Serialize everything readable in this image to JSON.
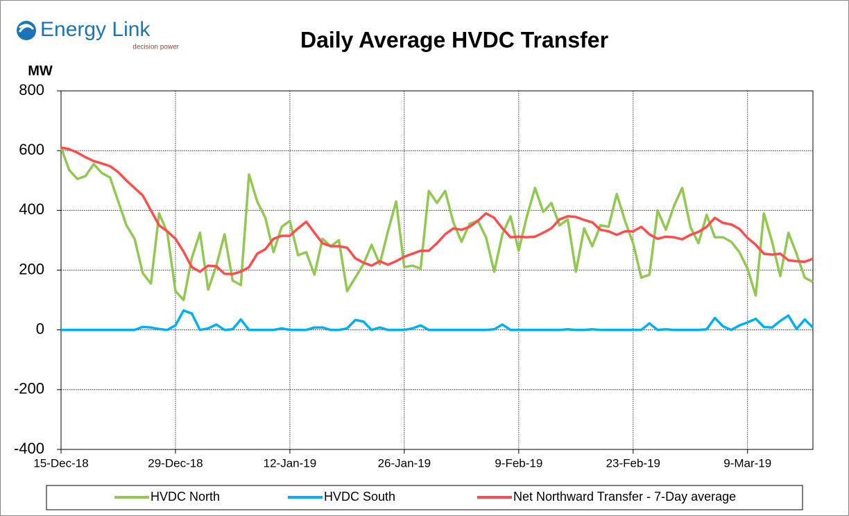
{
  "logo": {
    "name": "Energy Link",
    "tagline": "decision power"
  },
  "chart_data": {
    "type": "line",
    "title": "Daily Average HVDC Transfer",
    "y_label": "MW",
    "x": [
      "2018-12-15",
      "2018-12-16",
      "2018-12-17",
      "2018-12-18",
      "2018-12-19",
      "2018-12-20",
      "2018-12-21",
      "2018-12-22",
      "2018-12-23",
      "2018-12-24",
      "2018-12-25",
      "2018-12-26",
      "2018-12-27",
      "2018-12-28",
      "2018-12-29",
      "2018-12-30",
      "2018-12-31",
      "2019-01-01",
      "2019-01-02",
      "2019-01-03",
      "2019-01-04",
      "2019-01-05",
      "2019-01-06",
      "2019-01-07",
      "2019-01-08",
      "2019-01-09",
      "2019-01-10",
      "2019-01-11",
      "2019-01-12",
      "2019-01-13",
      "2019-01-14",
      "2019-01-15",
      "2019-01-16",
      "2019-01-17",
      "2019-01-18",
      "2019-01-19",
      "2019-01-20",
      "2019-01-21",
      "2019-01-22",
      "2019-01-23",
      "2019-01-24",
      "2019-01-25",
      "2019-01-26",
      "2019-01-27",
      "2019-01-28",
      "2019-01-29",
      "2019-01-30",
      "2019-01-31",
      "2019-02-01",
      "2019-02-02",
      "2019-02-03",
      "2019-02-04",
      "2019-02-05",
      "2019-02-06",
      "2019-02-07",
      "2019-02-08",
      "2019-02-09",
      "2019-02-10",
      "2019-02-11",
      "2019-02-12",
      "2019-02-13",
      "2019-02-14",
      "2019-02-15",
      "2019-02-16",
      "2019-02-17",
      "2019-02-18",
      "2019-02-19",
      "2019-02-20",
      "2019-02-21",
      "2019-02-22",
      "2019-02-23",
      "2019-02-24",
      "2019-02-25",
      "2019-02-26",
      "2019-02-27",
      "2019-02-28",
      "2019-03-01",
      "2019-03-02",
      "2019-03-03",
      "2019-03-04",
      "2019-03-05",
      "2019-03-06",
      "2019-03-07",
      "2019-03-08",
      "2019-03-09",
      "2019-03-10",
      "2019-03-11",
      "2019-03-12",
      "2019-03-13",
      "2019-03-14",
      "2019-03-15",
      "2019-03-16",
      "2019-03-17"
    ],
    "series": [
      {
        "name": "HVDC North",
        "color": "#92c850",
        "values": [
          610,
          535,
          505,
          515,
          555,
          525,
          510,
          430,
          350,
          305,
          190,
          155,
          390,
          325,
          130,
          100,
          240,
          325,
          135,
          215,
          320,
          165,
          150,
          520,
          430,
          375,
          260,
          345,
          365,
          250,
          260,
          185,
          305,
          280,
          300,
          130,
          175,
          220,
          285,
          220,
          330,
          430,
          210,
          215,
          205,
          465,
          425,
          465,
          360,
          295,
          355,
          365,
          310,
          195,
          320,
          380,
          265,
          380,
          475,
          395,
          425,
          350,
          370,
          195,
          340,
          280,
          350,
          345,
          455,
          365,
          290,
          175,
          185,
          400,
          335,
          415,
          475,
          345,
          290,
          385,
          310,
          310,
          295,
          260,
          205,
          115,
          390,
          295,
          180,
          325,
          255,
          175,
          160
        ]
      },
      {
        "name": "HVDC South",
        "color": "#00b0f0",
        "values": [
          0,
          0,
          0,
          0,
          0,
          0,
          0,
          0,
          0,
          0,
          10,
          8,
          3,
          0,
          15,
          65,
          55,
          0,
          5,
          18,
          0,
          2,
          35,
          0,
          0,
          0,
          0,
          5,
          0,
          0,
          0,
          8,
          8,
          0,
          0,
          5,
          33,
          28,
          0,
          8,
          0,
          0,
          0,
          5,
          15,
          0,
          0,
          0,
          0,
          0,
          0,
          0,
          0,
          2,
          18,
          0,
          0,
          0,
          0,
          0,
          0,
          0,
          2,
          0,
          0,
          2,
          0,
          0,
          0,
          0,
          0,
          0,
          22,
          0,
          2,
          0,
          0,
          0,
          0,
          2,
          40,
          12,
          0,
          15,
          25,
          37,
          10,
          8,
          30,
          48,
          3,
          35,
          8
        ]
      },
      {
        "name": "Net Northward Transfer - 7-Day average",
        "color": "#ff4b4b",
        "values": [
          610,
          605,
          593,
          578,
          565,
          557,
          548,
          528,
          500,
          475,
          450,
          400,
          350,
          330,
          305,
          262,
          210,
          195,
          215,
          213,
          188,
          187,
          195,
          210,
          255,
          270,
          305,
          315,
          315,
          340,
          362,
          325,
          290,
          280,
          280,
          275,
          240,
          225,
          215,
          230,
          218,
          230,
          245,
          255,
          265,
          265,
          290,
          320,
          340,
          335,
          345,
          365,
          390,
          375,
          340,
          310,
          312,
          310,
          312,
          325,
          340,
          370,
          380,
          378,
          368,
          360,
          335,
          330,
          318,
          330,
          330,
          345,
          320,
          305,
          312,
          310,
          303,
          318,
          328,
          345,
          375,
          358,
          353,
          338,
          308,
          285,
          255,
          252,
          255,
          233,
          230,
          228,
          238
        ]
      }
    ],
    "xlim": [
      "2018-12-15",
      "2019-03-17"
    ],
    "xticks": [
      {
        "value": "2018-12-15",
        "label": "15-Dec-18"
      },
      {
        "value": "2018-12-29",
        "label": "29-Dec-18"
      },
      {
        "value": "2019-01-12",
        "label": "12-Jan-19"
      },
      {
        "value": "2019-01-26",
        "label": "26-Jan-19"
      },
      {
        "value": "2019-02-09",
        "label": "9-Feb-19"
      },
      {
        "value": "2019-02-23",
        "label": "23-Feb-19"
      },
      {
        "value": "2019-03-09",
        "label": "9-Mar-19"
      }
    ],
    "ylim": [
      -400,
      800
    ],
    "yticks": [
      -400,
      -200,
      0,
      200,
      400,
      600,
      800
    ],
    "grid": true,
    "legend": "bottom"
  }
}
